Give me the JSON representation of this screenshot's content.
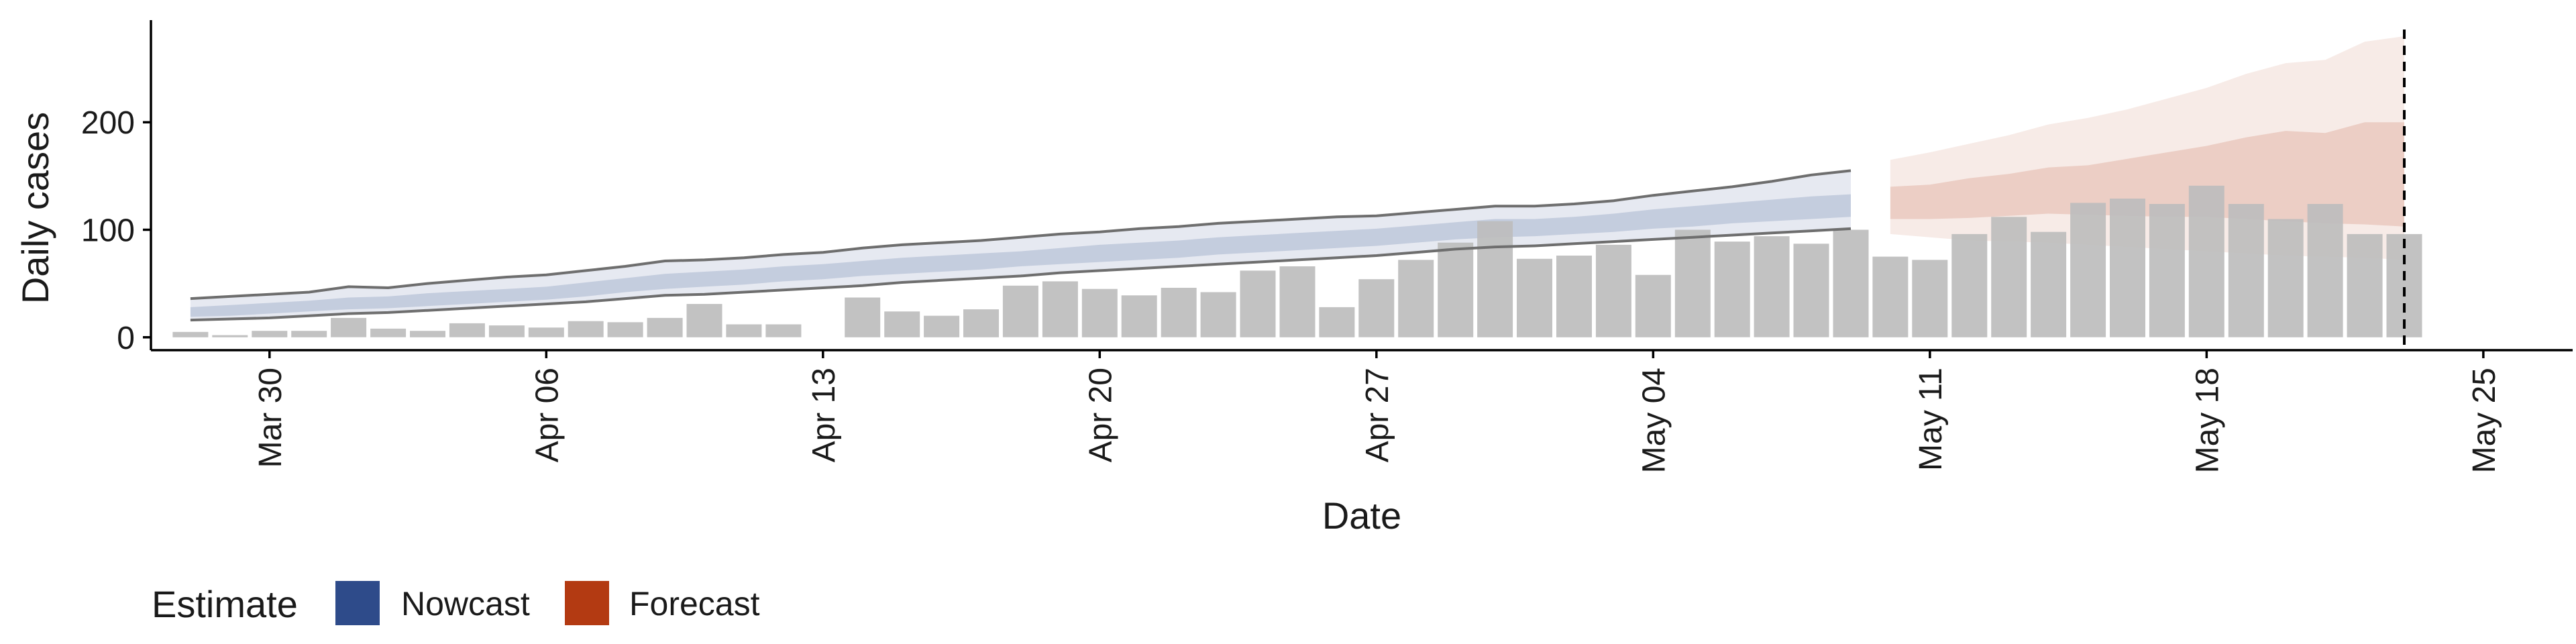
{
  "chart_data": {
    "type": "bar",
    "title": "",
    "xlabel": "Date",
    "ylabel": "Daily cases",
    "ylim": [
      -12,
      295
    ],
    "xlim": [
      "2020-03-27",
      "2020-05-25"
    ],
    "y_ticks": [
      0,
      100,
      200
    ],
    "x_ticks": [
      {
        "date": "2020-03-30",
        "label": "Mar 30"
      },
      {
        "date": "2020-04-06",
        "label": "Apr 06"
      },
      {
        "date": "2020-04-13",
        "label": "Apr 13"
      },
      {
        "date": "2020-04-20",
        "label": "Apr 20"
      },
      {
        "date": "2020-04-27",
        "label": "Apr 27"
      },
      {
        "date": "2020-05-04",
        "label": "May 04"
      },
      {
        "date": "2020-05-11",
        "label": "May 11"
      },
      {
        "date": "2020-05-18",
        "label": "May 18"
      },
      {
        "date": "2020-05-25",
        "label": "May 25"
      }
    ],
    "grid": false,
    "legend": {
      "position": "bottom-left",
      "title": "Estimate",
      "entries": [
        {
          "name": "Nowcast",
          "color": "#2e4b8a"
        },
        {
          "name": "Forecast",
          "color": "#b33a12"
        }
      ]
    },
    "reference_line": {
      "date": "2020-05-23",
      "style": "dashed"
    },
    "observed_cases": {
      "color": "#bdbdbd",
      "dates": [
        "2020-03-28",
        "2020-03-29",
        "2020-03-30",
        "2020-03-31",
        "2020-04-01",
        "2020-04-02",
        "2020-04-03",
        "2020-04-04",
        "2020-04-05",
        "2020-04-06",
        "2020-04-07",
        "2020-04-08",
        "2020-04-09",
        "2020-04-10",
        "2020-04-11",
        "2020-04-12",
        "2020-04-13",
        "2020-04-14",
        "2020-04-15",
        "2020-04-16",
        "2020-04-17",
        "2020-04-18",
        "2020-04-19",
        "2020-04-20",
        "2020-04-21",
        "2020-04-22",
        "2020-04-23",
        "2020-04-24",
        "2020-04-25",
        "2020-04-26",
        "2020-04-27",
        "2020-04-28",
        "2020-04-29",
        "2020-04-30",
        "2020-05-01",
        "2020-05-02",
        "2020-05-03",
        "2020-05-04",
        "2020-05-05",
        "2020-05-06",
        "2020-05-07",
        "2020-05-08",
        "2020-05-09",
        "2020-05-10",
        "2020-05-11",
        "2020-05-12",
        "2020-05-13",
        "2020-05-14",
        "2020-05-15",
        "2020-05-16",
        "2020-05-17",
        "2020-05-18",
        "2020-05-19",
        "2020-05-20",
        "2020-05-21",
        "2020-05-22",
        "2020-05-23"
      ],
      "values": [
        5,
        2,
        6,
        6,
        18,
        8,
        6,
        13,
        11,
        9,
        15,
        14,
        18,
        31,
        12,
        12,
        0,
        37,
        24,
        20,
        26,
        48,
        52,
        45,
        39,
        46,
        42,
        62,
        66,
        28,
        54,
        72,
        88,
        108,
        73,
        76,
        86,
        58,
        100,
        89,
        94,
        87,
        100,
        75,
        72,
        96,
        112,
        98,
        125,
        129,
        124,
        141,
        124,
        110,
        124,
        96,
        96
      ]
    },
    "nowcast": {
      "color": "#2e4b8a",
      "dates": [
        "2020-03-28",
        "2020-03-29",
        "2020-03-30",
        "2020-03-31",
        "2020-04-01",
        "2020-04-02",
        "2020-04-03",
        "2020-04-04",
        "2020-04-05",
        "2020-04-06",
        "2020-04-07",
        "2020-04-08",
        "2020-04-09",
        "2020-04-10",
        "2020-04-11",
        "2020-04-12",
        "2020-04-13",
        "2020-04-14",
        "2020-04-15",
        "2020-04-16",
        "2020-04-17",
        "2020-04-18",
        "2020-04-19",
        "2020-04-20",
        "2020-04-21",
        "2020-04-22",
        "2020-04-23",
        "2020-04-24",
        "2020-04-25",
        "2020-04-26",
        "2020-04-27",
        "2020-04-28",
        "2020-04-29",
        "2020-04-30",
        "2020-05-01",
        "2020-05-02",
        "2020-05-03",
        "2020-05-04",
        "2020-05-05",
        "2020-05-06",
        "2020-05-07",
        "2020-05-08",
        "2020-05-09"
      ],
      "upper90": [
        36,
        38,
        40,
        42,
        47,
        46,
        50,
        53,
        56,
        58,
        62,
        66,
        71,
        72,
        74,
        77,
        79,
        83,
        86,
        88,
        90,
        93,
        96,
        98,
        101,
        103,
        106,
        108,
        110,
        112,
        113,
        116,
        119,
        122,
        122,
        124,
        127,
        132,
        136,
        140,
        145,
        151,
        155
      ],
      "upper50": [
        28,
        30,
        32,
        34,
        37,
        38,
        41,
        43,
        45,
        47,
        51,
        55,
        59,
        61,
        63,
        66,
        68,
        71,
        74,
        76,
        78,
        80,
        83,
        86,
        88,
        90,
        93,
        95,
        97,
        99,
        101,
        104,
        107,
        110,
        110,
        112,
        115,
        119,
        122,
        125,
        128,
        131,
        133
      ],
      "lower50": [
        19,
        20,
        22,
        24,
        26,
        27,
        29,
        31,
        33,
        35,
        38,
        42,
        45,
        47,
        49,
        52,
        54,
        57,
        59,
        61,
        63,
        66,
        68,
        70,
        72,
        74,
        77,
        79,
        81,
        83,
        85,
        88,
        91,
        93,
        94,
        96,
        98,
        101,
        103,
        106,
        108,
        110,
        112
      ],
      "lower90": [
        16,
        17,
        18,
        20,
        22,
        23,
        25,
        27,
        29,
        31,
        33,
        36,
        39,
        40,
        42,
        44,
        46,
        48,
        51,
        53,
        55,
        57,
        60,
        62,
        64,
        66,
        68,
        70,
        72,
        74,
        76,
        79,
        82,
        84,
        85,
        87,
        89,
        91,
        93,
        95,
        97,
        99,
        101
      ]
    },
    "forecast": {
      "color": "#b33a12",
      "dates": [
        "2020-05-10",
        "2020-05-11",
        "2020-05-12",
        "2020-05-13",
        "2020-05-14",
        "2020-05-15",
        "2020-05-16",
        "2020-05-17",
        "2020-05-18",
        "2020-05-19",
        "2020-05-20",
        "2020-05-21",
        "2020-05-22",
        "2020-05-23"
      ],
      "upper90": [
        165,
        172,
        180,
        188,
        198,
        204,
        212,
        222,
        232,
        245,
        255,
        258,
        275,
        280
      ],
      "upper50": [
        140,
        142,
        148,
        152,
        158,
        160,
        166,
        172,
        178,
        186,
        192,
        190,
        200,
        200
      ],
      "lower50": [
        110,
        110,
        111,
        113,
        115,
        114,
        113,
        112,
        112,
        110,
        108,
        106,
        105,
        103
      ],
      "lower90": [
        96,
        93,
        90,
        89,
        88,
        86,
        84,
        82,
        80,
        78,
        76,
        75,
        74,
        72
      ]
    }
  }
}
